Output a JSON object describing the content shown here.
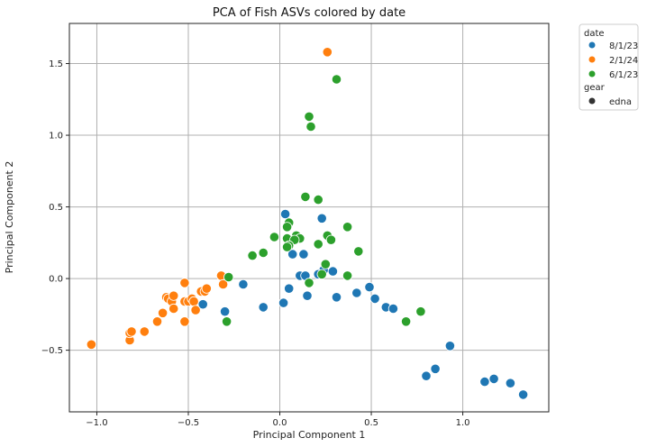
{
  "chart_data": {
    "type": "scatter",
    "title": "PCA of Fish ASVs colored by date",
    "xlabel": "Principal Component 1",
    "ylabel": "Principal Component 2",
    "xlim": [
      -1.15,
      1.47
    ],
    "ylim": [
      -0.93,
      1.78
    ],
    "xticks": [
      -1.0,
      -0.5,
      0.0,
      0.5,
      1.0
    ],
    "xtick_labels": [
      "−1.0",
      "−0.5",
      "0.0",
      "0.5",
      "1.0"
    ],
    "yticks": [
      -0.5,
      0.0,
      0.5,
      1.0,
      1.5
    ],
    "ytick_labels": [
      "−0.5",
      "0.0",
      "0.5",
      "1.0",
      "1.5"
    ],
    "grid": true,
    "legend": {
      "placement": "outside-top-right",
      "hue_title": "date",
      "style_title": "gear",
      "style_entries": [
        "edna"
      ]
    },
    "series": [
      {
        "name": "8/1/23",
        "color": "#1f77b4",
        "points": [
          [
            0.03,
            0.45
          ],
          [
            0.23,
            0.42
          ],
          [
            0.07,
            0.17
          ],
          [
            0.13,
            0.17
          ],
          [
            0.24,
            0.06
          ],
          [
            0.29,
            0.05
          ],
          [
            0.11,
            0.02
          ],
          [
            0.14,
            0.02
          ],
          [
            0.21,
            0.03
          ],
          [
            -0.2,
            -0.04
          ],
          [
            0.05,
            -0.07
          ],
          [
            0.15,
            -0.12
          ],
          [
            0.31,
            -0.13
          ],
          [
            0.42,
            -0.1
          ],
          [
            0.49,
            -0.06
          ],
          [
            0.52,
            -0.14
          ],
          [
            0.02,
            -0.17
          ],
          [
            -0.09,
            -0.2
          ],
          [
            0.58,
            -0.2
          ],
          [
            0.62,
            -0.21
          ],
          [
            -0.42,
            -0.18
          ],
          [
            -0.3,
            -0.23
          ],
          [
            0.93,
            -0.47
          ],
          [
            0.8,
            -0.68
          ],
          [
            0.85,
            -0.63
          ],
          [
            1.12,
            -0.72
          ],
          [
            1.17,
            -0.7
          ],
          [
            1.26,
            -0.73
          ],
          [
            1.33,
            -0.81
          ]
        ]
      },
      {
        "name": "2/1/24",
        "color": "#ff7f0e",
        "points": [
          [
            0.26,
            1.58
          ],
          [
            -1.03,
            -0.46
          ],
          [
            -0.82,
            -0.43
          ],
          [
            -0.82,
            -0.38
          ],
          [
            -0.81,
            -0.37
          ],
          [
            -0.74,
            -0.37
          ],
          [
            -0.67,
            -0.3
          ],
          [
            -0.64,
            -0.24
          ],
          [
            -0.62,
            -0.13
          ],
          [
            -0.61,
            -0.14
          ],
          [
            -0.59,
            -0.16
          ],
          [
            -0.58,
            -0.21
          ],
          [
            -0.58,
            -0.12
          ],
          [
            -0.52,
            -0.03
          ],
          [
            -0.52,
            -0.16
          ],
          [
            -0.5,
            -0.16
          ],
          [
            -0.48,
            -0.14
          ],
          [
            -0.47,
            -0.16
          ],
          [
            -0.46,
            -0.22
          ],
          [
            -0.43,
            -0.09
          ],
          [
            -0.41,
            -0.09
          ],
          [
            -0.4,
            -0.07
          ],
          [
            -0.52,
            -0.3
          ],
          [
            -0.32,
            0.02
          ],
          [
            -0.31,
            -0.04
          ]
        ]
      },
      {
        "name": "6/1/23",
        "color": "#2ca02c",
        "points": [
          [
            0.31,
            1.39
          ],
          [
            0.16,
            1.13
          ],
          [
            0.17,
            1.06
          ],
          [
            0.14,
            0.57
          ],
          [
            0.21,
            0.55
          ],
          [
            0.05,
            0.39
          ],
          [
            0.04,
            0.36
          ],
          [
            0.37,
            0.36
          ],
          [
            0.26,
            0.3
          ],
          [
            0.28,
            0.27
          ],
          [
            0.09,
            0.3
          ],
          [
            0.11,
            0.28
          ],
          [
            0.04,
            0.28
          ],
          [
            0.08,
            0.27
          ],
          [
            0.05,
            0.23
          ],
          [
            0.04,
            0.22
          ],
          [
            -0.03,
            0.29
          ],
          [
            0.21,
            0.24
          ],
          [
            0.43,
            0.19
          ],
          [
            -0.09,
            0.18
          ],
          [
            -0.15,
            0.16
          ],
          [
            0.25,
            0.1
          ],
          [
            0.23,
            0.03
          ],
          [
            0.37,
            0.02
          ],
          [
            -0.28,
            0.01
          ],
          [
            0.16,
            -0.03
          ],
          [
            -0.29,
            -0.3
          ],
          [
            0.69,
            -0.3
          ],
          [
            0.77,
            -0.23
          ]
        ]
      }
    ]
  }
}
